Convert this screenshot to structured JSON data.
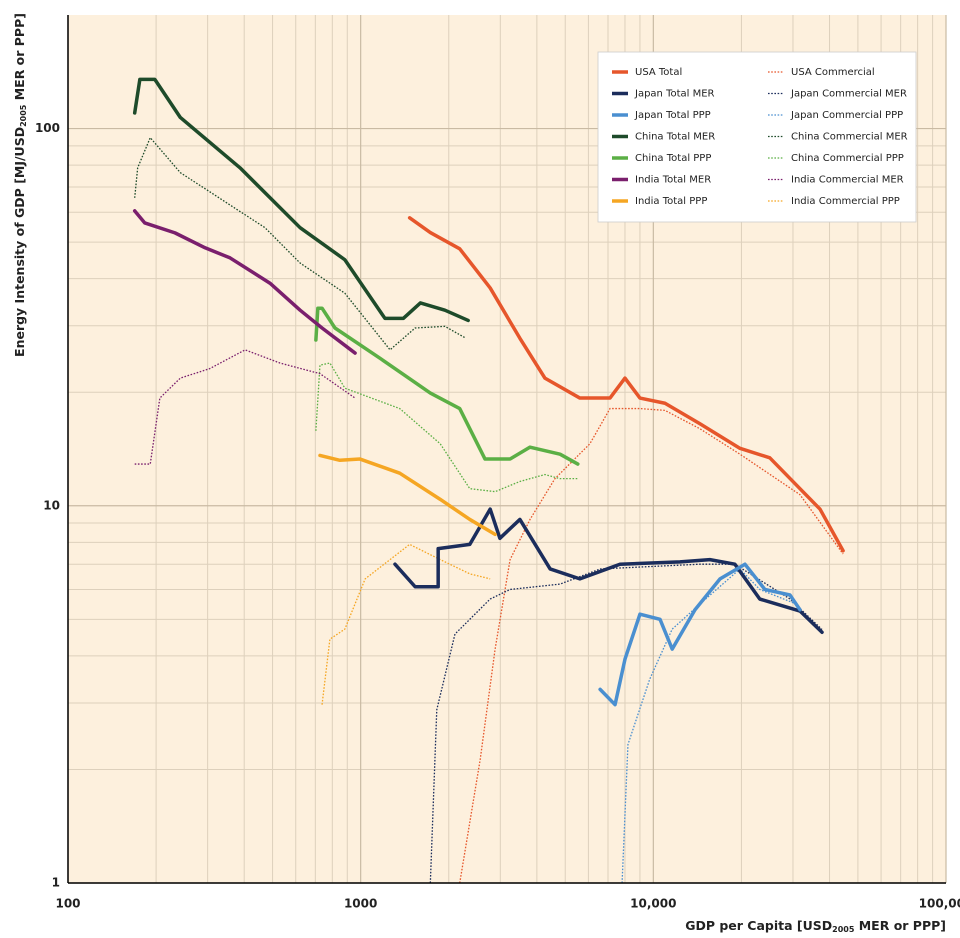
{
  "chart_data": {
    "type": "line",
    "xlabel_parts": [
      "GDP per Capita [USD",
      "2005",
      " MER or PPP]"
    ],
    "ylabel_parts": [
      "Energy Intensity of GDP [MJ/USD",
      "2005",
      " MER or PPP]"
    ],
    "xscale": "log",
    "yscale": "log",
    "xlim": [
      100,
      100000
    ],
    "ylim": [
      1,
      200
    ],
    "xticks": [
      100,
      1000,
      {
        "value": 10000,
        "label": "10,000"
      },
      {
        "value": 100000,
        "label": "100,000"
      }
    ],
    "yticks": [
      1,
      10,
      100
    ],
    "grid": true,
    "minor_grid": true,
    "legend": "upper right",
    "series": [
      {
        "name": "USA Total",
        "color": "#e6562b",
        "style": "solid",
        "x": [
          1470,
          1730,
          2180,
          2770,
          3500,
          4260,
          5610,
          7110,
          8000,
          9000,
          10960,
          14430,
          19770,
          25000,
          31700,
          37100,
          44500
        ],
        "values": [
          58,
          53,
          48,
          37.8,
          27.8,
          21.8,
          19.3,
          19.3,
          21.8,
          19.3,
          18.7,
          16.5,
          14.2,
          13.4,
          11.1,
          9.8,
          7.6
        ]
      },
      {
        "name": "Japan Total MER",
        "color": "#1b2d5c",
        "style": "solid",
        "x": [
          1310,
          1535,
          1840,
          1840,
          2360,
          2770,
          2990,
          3500,
          4440,
          5610,
          7690,
          12330,
          15600,
          19000,
          23100,
          31700,
          37700
        ],
        "values": [
          7.0,
          6.1,
          6.1,
          7.7,
          7.9,
          9.8,
          8.2,
          9.2,
          6.8,
          6.4,
          7.0,
          7.1,
          7.2,
          7.0,
          5.66,
          5.26,
          4.62
        ]
      },
      {
        "name": "Japan Total PPP",
        "color": "#4a8fd0",
        "style": "solid",
        "x": [
          6580,
          7400,
          8000,
          9000,
          10540,
          11600,
          13880,
          16900,
          20560,
          24050,
          29300,
          31700
        ],
        "values": [
          3.26,
          2.97,
          3.92,
          5.16,
          5.0,
          4.17,
          5.3,
          6.4,
          7.0,
          6.0,
          5.8,
          5.3
        ]
      },
      {
        "name": "China Total MER",
        "color": "#1e4b2a",
        "style": "solid",
        "x": [
          169,
          176,
          198,
          242,
          387,
          621,
          883,
          1210,
          1400,
          1600,
          1940,
          2330
        ],
        "values": [
          110,
          135,
          135,
          107,
          78.7,
          54.6,
          44.9,
          31.4,
          31.4,
          34.5,
          33.0,
          31.0
        ]
      },
      {
        "name": "China Total PPP",
        "color": "#5baf45",
        "style": "solid",
        "x": [
          703,
          714,
          738,
          817,
          1165,
          1730,
          2180,
          2660,
          3240,
          3790,
          4800,
          5520
        ],
        "values": [
          27.5,
          33.4,
          33.4,
          29.6,
          24.6,
          19.9,
          18.1,
          13.3,
          13.3,
          14.3,
          13.7,
          12.9
        ]
      },
      {
        "name": "India Total MER",
        "color": "#7a1f6d",
        "style": "solid",
        "x": [
          169,
          183,
          232,
          294,
          358,
          490,
          621,
          738,
          957
        ],
        "values": [
          60.5,
          56.2,
          52.9,
          48.3,
          45.4,
          38.9,
          33.0,
          29.6,
          25.4
        ]
      },
      {
        "name": "India Total PPP",
        "color": "#f5a623",
        "style": "solid",
        "x": [
          726,
          849,
          995,
          1360,
          1870,
          2360,
          2880
        ],
        "values": [
          13.6,
          13.2,
          13.3,
          12.2,
          10.4,
          9.2,
          8.4
        ]
      },
      {
        "name": "USA Commercial",
        "color": "#e6562b",
        "style": "dotted",
        "x": [
          2180,
          2560,
          2880,
          3240,
          3790,
          4610,
          6070,
          7110,
          9000,
          10960,
          14430,
          19770,
          31700,
          44500
        ],
        "values": [
          1,
          2.12,
          4.17,
          7.2,
          9.2,
          11.8,
          14.6,
          18.1,
          18.1,
          17.9,
          16.0,
          13.7,
          10.7,
          7.45
        ]
      },
      {
        "name": "Japan Commercial MER",
        "color": "#1b2d5c",
        "style": "dotted",
        "x": [
          1730,
          1820,
          2100,
          2770,
          3240,
          4800,
          6580,
          9720,
          14430,
          19000,
          29300,
          37700
        ],
        "values": [
          1,
          2.88,
          4.57,
          5.66,
          6.0,
          6.2,
          6.8,
          6.9,
          7.0,
          7.0,
          5.66,
          4.7
        ]
      },
      {
        "name": "Japan Commercial PPP",
        "color": "#4a8fd0",
        "style": "dotted",
        "x": [
          7820,
          8190,
          9720,
          11600,
          14430,
          19770,
          23100,
          30600
        ],
        "values": [
          1,
          2.33,
          3.47,
          4.71,
          5.49,
          6.8,
          6.0,
          5.5
        ]
      },
      {
        "name": "China Commercial MER",
        "color": "#1e4b2a",
        "style": "dotted",
        "x": [
          169,
          173,
          191,
          242,
          471,
          621,
          883,
          1260,
          1535,
          1940,
          2290
        ],
        "values": [
          65.5,
          78.7,
          94.6,
          76.4,
          54.6,
          44,
          36.6,
          25.9,
          29.6,
          29.9,
          27.8
        ]
      },
      {
        "name": "China Commercial PPP",
        "color": "#5baf45",
        "style": "dotted",
        "x": [
          703,
          726,
          785,
          883,
          1360,
          1870,
          2360,
          2880,
          3500,
          4260,
          4800,
          5520
        ],
        "values": [
          15.8,
          23.6,
          23.9,
          20.5,
          18.1,
          14.6,
          11.1,
          10.9,
          11.6,
          12.1,
          11.8,
          11.8
        ]
      },
      {
        "name": "India Commercial MER",
        "color": "#7a1f6d",
        "style": "dotted",
        "x": [
          169,
          191,
          206,
          242,
          305,
          403,
          530,
          726,
          957
        ],
        "values": [
          12.9,
          12.9,
          19.3,
          21.8,
          23.1,
          25.9,
          23.9,
          22.4,
          19.3
        ]
      },
      {
        "name": "India Commercial PPP",
        "color": "#f5a623",
        "style": "dotted",
        "x": [
          738,
          785,
          883,
          1036,
          1260,
          1470,
          1870,
          2360,
          2770
        ],
        "values": [
          2.97,
          4.43,
          4.71,
          6.4,
          7.2,
          7.9,
          7.2,
          6.6,
          6.4
        ]
      }
    ]
  }
}
